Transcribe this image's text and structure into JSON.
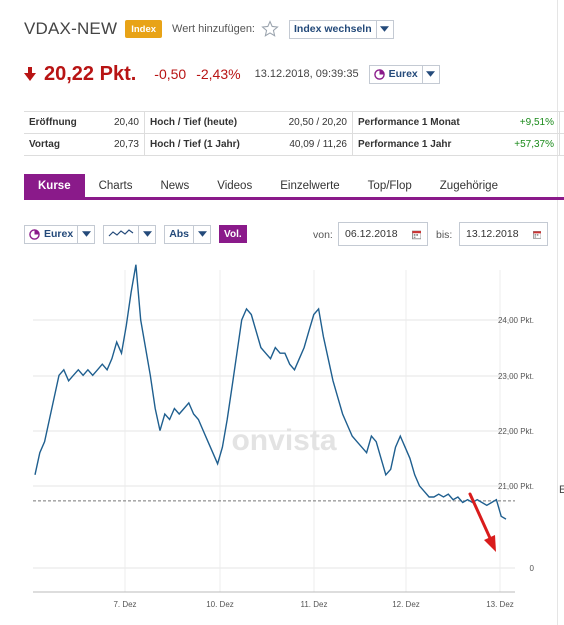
{
  "header": {
    "title": "VDAX-NEW",
    "badge": "Index",
    "add_label": "Wert hinzufügen:",
    "index_select": "Index wechseln"
  },
  "quote": {
    "price": "20,22 Pkt.",
    "change": "-0,50",
    "change_pct": "-2,43%",
    "timestamp": "13.12.2018, 09:39:35",
    "exchange": "Eurex",
    "color_negative": "#b81414"
  },
  "stats": [
    {
      "l1": "Eröffnung",
      "v1": "20,40",
      "l2": "Hoch / Tief (heute)",
      "v2": "20,50 / 20,20",
      "l3": "Performance 1 Monat",
      "v3": "+9,51%"
    },
    {
      "l1": "Vortag",
      "v1": "20,73",
      "l2": "Hoch / Tief (1 Jahr)",
      "v2": "40,09 / 11,26",
      "l3": "Performance 1 Jahr",
      "v3": "+57,37%"
    }
  ],
  "tabs": [
    "Kurse",
    "Charts",
    "News",
    "Videos",
    "Einzelwerte",
    "Top/Flop",
    "Zugehörige"
  ],
  "controls": {
    "exchange": "Eurex",
    "scale": "Abs",
    "vol": "Vol.",
    "from_label": "von:",
    "from_date": "06.12.2018",
    "to_label": "bis:",
    "to_date": "13.12.2018"
  },
  "side_letter": "E",
  "chart_data": {
    "type": "line",
    "watermark": "onvista",
    "x_ticks": [
      "7. Dez",
      "10. Dez",
      "11. Dez",
      "12. Dez",
      "13. Dez"
    ],
    "y_ticks": [
      "24,00 Pkt.",
      "23,00 Pkt.",
      "22,00 Pkt.",
      "21,00 Pkt.",
      "0"
    ],
    "ylim": [
      20.0,
      25.0
    ],
    "reference_line": 20.73,
    "color": "#1f5f8f",
    "annotation": "red-arrow-pointing-down",
    "values": [
      21.2,
      21.6,
      21.8,
      22.2,
      22.6,
      23.0,
      23.1,
      22.9,
      23.0,
      23.1,
      23.0,
      23.1,
      23.0,
      23.1,
      23.2,
      23.1,
      23.3,
      23.6,
      23.4,
      23.9,
      24.5,
      25.0,
      24.0,
      23.5,
      23.0,
      22.4,
      22.0,
      22.3,
      22.2,
      22.4,
      22.3,
      22.4,
      22.5,
      22.3,
      22.2,
      22.0,
      21.8,
      21.6,
      21.4,
      21.7,
      22.2,
      22.8,
      23.4,
      24.0,
      24.2,
      24.1,
      23.8,
      23.5,
      23.4,
      23.3,
      23.5,
      23.4,
      23.4,
      23.2,
      23.1,
      23.3,
      23.5,
      23.8,
      24.1,
      24.2,
      23.7,
      23.3,
      22.9,
      22.6,
      22.3,
      22.1,
      21.9,
      21.8,
      21.7,
      21.6,
      21.9,
      21.8,
      21.5,
      21.2,
      21.3,
      21.7,
      21.9,
      21.7,
      21.5,
      21.2,
      21.0,
      20.9,
      20.8,
      20.8,
      20.85,
      20.8,
      20.85,
      20.75,
      20.8,
      20.7,
      20.75,
      20.7,
      20.75,
      20.7,
      20.65,
      20.7,
      20.75,
      20.45,
      20.4
    ]
  }
}
